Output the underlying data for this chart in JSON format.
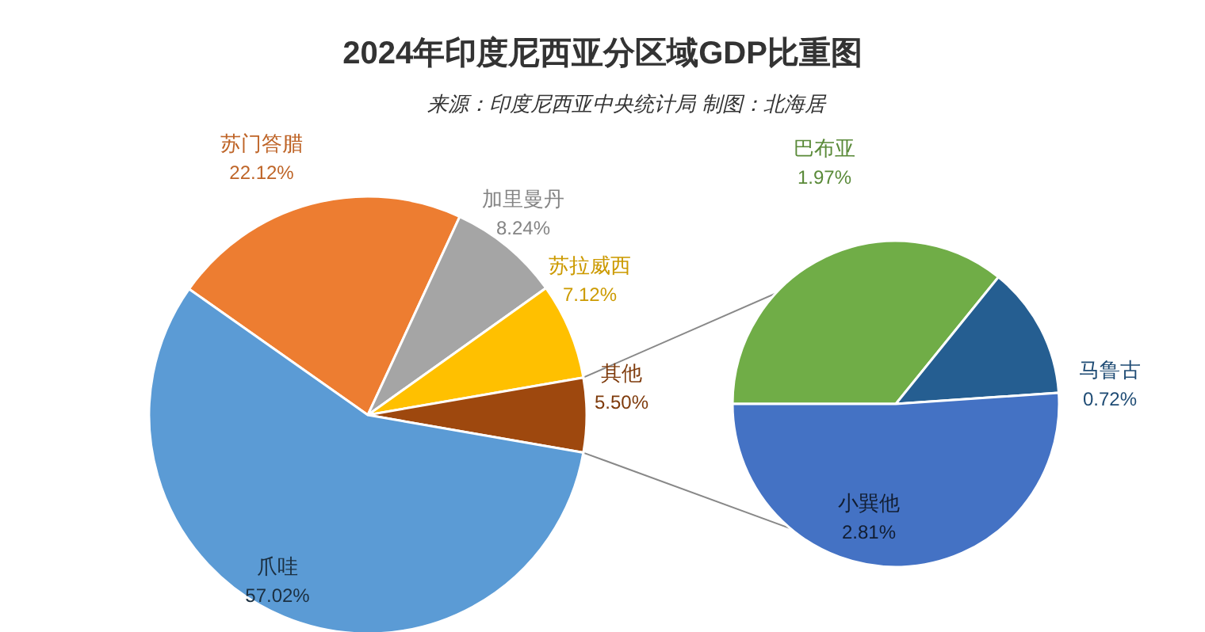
{
  "chart_data": [
    {
      "type": "pie",
      "title": "2024年印度尼西亚分区域GDP比重图",
      "subtitle": "来源：印度尼西亚中央统计局 制图：北海居",
      "categories": [
        "苏门答腊",
        "加里曼丹",
        "苏拉威西",
        "其他",
        "爪哇"
      ],
      "values": [
        22.12,
        8.24,
        7.12,
        5.5,
        57.02
      ],
      "colors": [
        "#ed7d31",
        "#a5a5a5",
        "#ffc000",
        "#9e480e",
        "#5b9bd5"
      ],
      "value_labels": [
        "22.12%",
        "8.24%",
        "7.12%",
        "5.50%",
        "57.02%"
      ]
    },
    {
      "type": "pie",
      "categories": [
        "巴布亚",
        "马鲁古",
        "小巽他"
      ],
      "values": [
        1.97,
        0.72,
        2.81
      ],
      "colors": [
        "#70ad47",
        "#255e91",
        "#4472c4"
      ],
      "value_labels": [
        "1.97%",
        "0.72%",
        "2.81%"
      ]
    }
  ]
}
